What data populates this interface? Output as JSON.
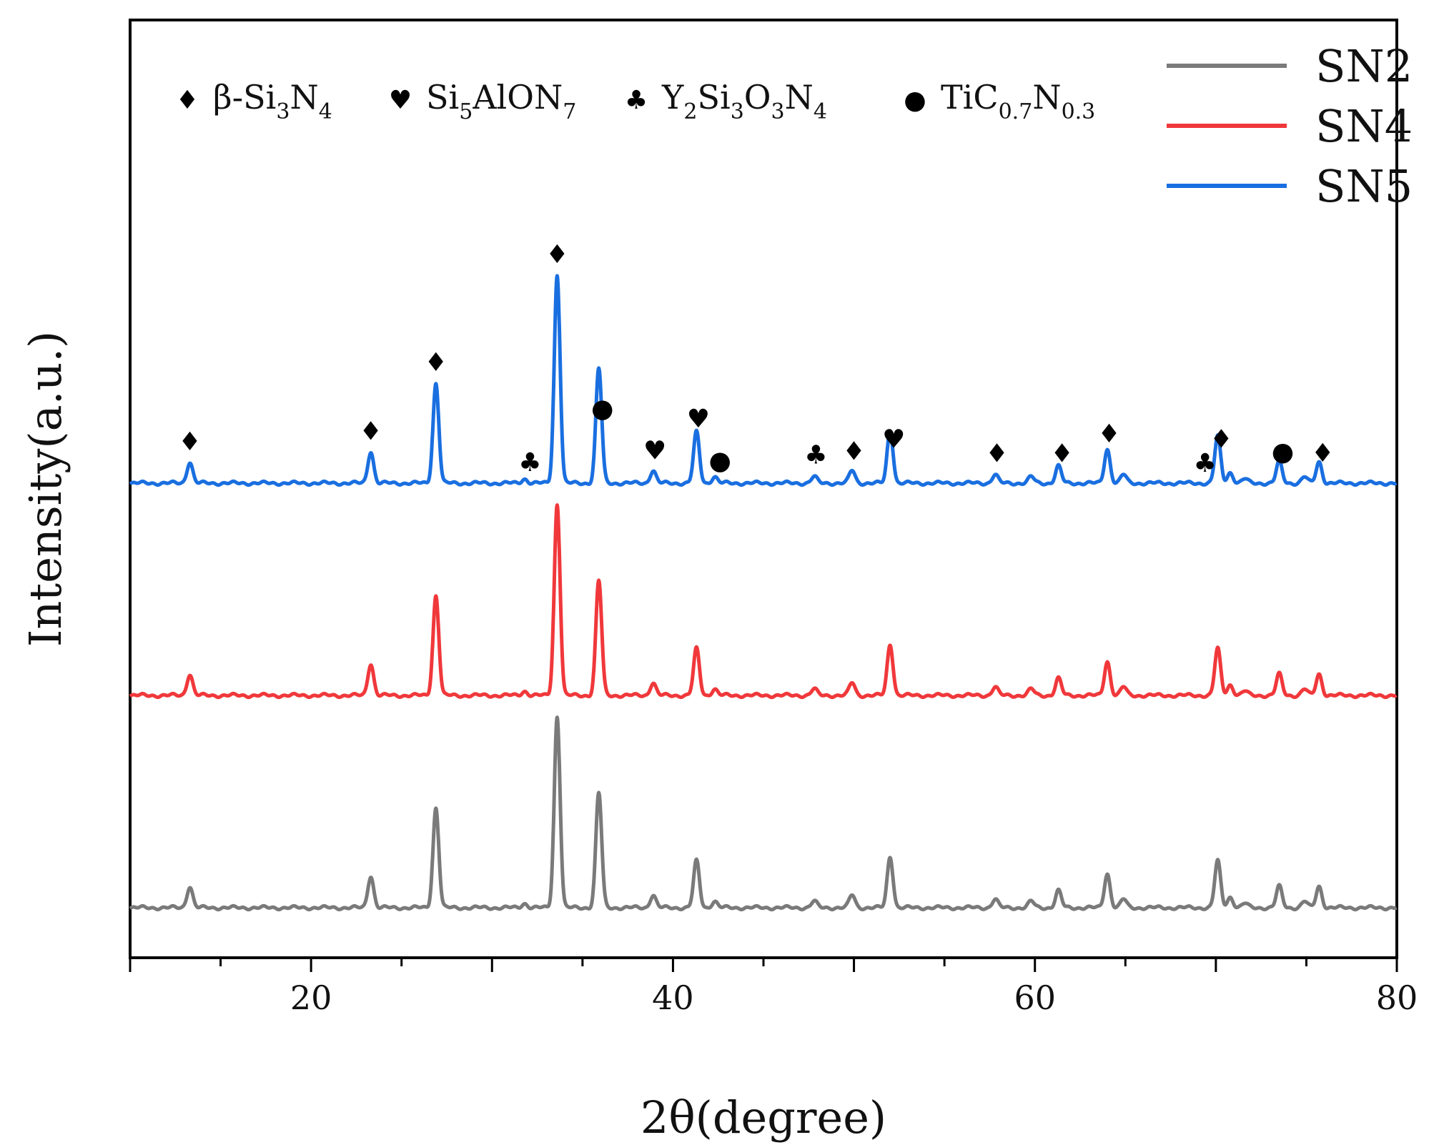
{
  "chart_data": {
    "type": "line",
    "title": "",
    "xlabel": "2θ(degree)",
    "ylabel": "Intensity(a.u.)",
    "xlim": [
      10,
      80
    ],
    "xticks": [
      20,
      40,
      60,
      80
    ],
    "y_ticks_shown": false,
    "grid": false,
    "legend_position": "top-right",
    "series": [
      {
        "name": "SN2",
        "color": "#7a7a7a",
        "baseline": 0.0,
        "peaks": [
          {
            "x": 13.3,
            "h": 0.1
          },
          {
            "x": 23.3,
            "h": 0.15
          },
          {
            "x": 26.9,
            "h": 0.47
          },
          {
            "x": 31.8,
            "h": 0.02
          },
          {
            "x": 33.6,
            "h": 0.9
          },
          {
            "x": 35.9,
            "h": 0.54
          },
          {
            "x": 38.9,
            "h": 0.06
          },
          {
            "x": 41.3,
            "h": 0.22
          },
          {
            "x": 42.3,
            "h": 0.03
          },
          {
            "x": 47.8,
            "h": 0.03
          },
          {
            "x": 49.9,
            "h": 0.06
          },
          {
            "x": 52.0,
            "h": 0.24
          },
          {
            "x": 57.8,
            "h": 0.04
          },
          {
            "x": 59.8,
            "h": 0.03
          },
          {
            "x": 61.3,
            "h": 0.08
          },
          {
            "x": 64.0,
            "h": 0.16
          },
          {
            "x": 64.9,
            "h": 0.04
          },
          {
            "x": 70.1,
            "h": 0.22
          },
          {
            "x": 70.8,
            "h": 0.05
          },
          {
            "x": 71.6,
            "h": 0.02
          },
          {
            "x": 73.5,
            "h": 0.1
          },
          {
            "x": 74.9,
            "h": 0.03
          },
          {
            "x": 75.7,
            "h": 0.1
          }
        ]
      },
      {
        "name": "SN4",
        "color": "#f0383b",
        "baseline": 1.0,
        "peaks": [
          {
            "x": 13.3,
            "h": 0.1
          },
          {
            "x": 23.3,
            "h": 0.15
          },
          {
            "x": 26.9,
            "h": 0.47
          },
          {
            "x": 31.8,
            "h": 0.02
          },
          {
            "x": 33.6,
            "h": 0.9
          },
          {
            "x": 35.9,
            "h": 0.54
          },
          {
            "x": 38.9,
            "h": 0.06
          },
          {
            "x": 41.3,
            "h": 0.22
          },
          {
            "x": 42.3,
            "h": 0.03
          },
          {
            "x": 47.8,
            "h": 0.03
          },
          {
            "x": 49.9,
            "h": 0.06
          },
          {
            "x": 52.0,
            "h": 0.24
          },
          {
            "x": 57.8,
            "h": 0.04
          },
          {
            "x": 59.8,
            "h": 0.03
          },
          {
            "x": 61.3,
            "h": 0.08
          },
          {
            "x": 64.0,
            "h": 0.16
          },
          {
            "x": 64.9,
            "h": 0.04
          },
          {
            "x": 70.1,
            "h": 0.22
          },
          {
            "x": 70.8,
            "h": 0.05
          },
          {
            "x": 71.6,
            "h": 0.02
          },
          {
            "x": 73.5,
            "h": 0.1
          },
          {
            "x": 74.9,
            "h": 0.03
          },
          {
            "x": 75.7,
            "h": 0.1
          }
        ]
      },
      {
        "name": "SN5",
        "color": "#1a6fe0",
        "baseline": 2.0,
        "peaks": [
          {
            "x": 13.3,
            "h": 0.1
          },
          {
            "x": 23.3,
            "h": 0.15
          },
          {
            "x": 26.9,
            "h": 0.47
          },
          {
            "x": 31.8,
            "h": 0.02
          },
          {
            "x": 33.6,
            "h": 0.98
          },
          {
            "x": 35.9,
            "h": 0.54
          },
          {
            "x": 38.9,
            "h": 0.06
          },
          {
            "x": 41.3,
            "h": 0.24
          },
          {
            "x": 42.3,
            "h": 0.03
          },
          {
            "x": 47.8,
            "h": 0.03
          },
          {
            "x": 49.9,
            "h": 0.06
          },
          {
            "x": 52.0,
            "h": 0.25
          },
          {
            "x": 57.8,
            "h": 0.04
          },
          {
            "x": 59.8,
            "h": 0.03
          },
          {
            "x": 61.3,
            "h": 0.08
          },
          {
            "x": 64.0,
            "h": 0.16
          },
          {
            "x": 64.9,
            "h": 0.04
          },
          {
            "x": 70.1,
            "h": 0.22
          },
          {
            "x": 70.8,
            "h": 0.05
          },
          {
            "x": 71.6,
            "h": 0.02
          },
          {
            "x": 73.5,
            "h": 0.1
          },
          {
            "x": 74.9,
            "h": 0.03
          },
          {
            "x": 75.7,
            "h": 0.1
          }
        ]
      }
    ],
    "phase_legend": [
      {
        "symbol": "♦",
        "name": "beta-si3n4",
        "parts": [
          {
            "t": "β-Si"
          },
          {
            "sub": "3"
          },
          {
            "t": "N"
          },
          {
            "sub": "4"
          }
        ]
      },
      {
        "symbol": "♥",
        "name": "si5alon7",
        "parts": [
          {
            "t": "Si"
          },
          {
            "sub": "5"
          },
          {
            "t": "AlON"
          },
          {
            "sub": "7"
          }
        ]
      },
      {
        "symbol": "♣",
        "name": "y2si3o3n4",
        "parts": [
          {
            "t": "Y"
          },
          {
            "sub": "2"
          },
          {
            "t": "Si"
          },
          {
            "sub": "3"
          },
          {
            "t": "O"
          },
          {
            "sub": "3"
          },
          {
            "t": "N"
          },
          {
            "sub": "4"
          }
        ]
      },
      {
        "symbol": "●",
        "name": "tic07n03",
        "parts": [
          {
            "t": "TiC"
          },
          {
            "sub": "0.7"
          },
          {
            "t": "N"
          },
          {
            "sub": "0.3"
          }
        ]
      }
    ],
    "peak_annotations": [
      {
        "x": 13.3,
        "symbol": "♦"
      },
      {
        "x": 23.3,
        "symbol": "♦"
      },
      {
        "x": 26.9,
        "symbol": "♦"
      },
      {
        "x": 32.1,
        "symbol": "♣"
      },
      {
        "x": 33.6,
        "symbol": "♦"
      },
      {
        "x": 36.1,
        "symbol": "●"
      },
      {
        "x": 39.0,
        "symbol": "♥"
      },
      {
        "x": 41.4,
        "symbol": "♥"
      },
      {
        "x": 42.6,
        "symbol": "●"
      },
      {
        "x": 47.9,
        "symbol": "♣"
      },
      {
        "x": 50.0,
        "symbol": "♦"
      },
      {
        "x": 52.2,
        "symbol": "♥"
      },
      {
        "x": 57.9,
        "symbol": "♦"
      },
      {
        "x": 61.5,
        "symbol": "♦"
      },
      {
        "x": 64.1,
        "symbol": "♦"
      },
      {
        "x": 69.4,
        "symbol": "♣"
      },
      {
        "x": 70.3,
        "symbol": "♦"
      },
      {
        "x": 73.7,
        "symbol": "●"
      },
      {
        "x": 75.9,
        "symbol": "♦"
      }
    ]
  }
}
